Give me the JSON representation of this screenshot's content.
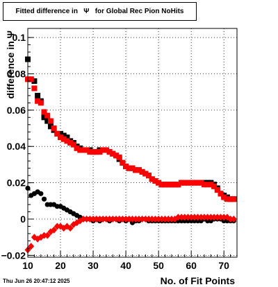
{
  "title": "Fitted difference in   Ψ   for Global Rec Pion NoHits",
  "footer": "Thu Jun 26 20:47:12 2025",
  "chart_data": {
    "type": "scatter",
    "xlabel": "No. of Fit Points",
    "ylabel": "difference in  Ψ",
    "xlim": [
      10,
      74
    ],
    "ylim": [
      -0.021,
      0.105
    ],
    "x_ticks": [
      "10",
      "20",
      "30",
      "40",
      "50",
      "60",
      "70"
    ],
    "y_ticks": [
      "−0.02",
      "0",
      "0.02",
      "0.04",
      "0.06",
      "0.08",
      "0.1"
    ],
    "grid": true,
    "series": [
      {
        "marker": "square",
        "color": "#000000",
        "x": [
          10,
          11,
          12,
          13,
          14,
          15,
          16,
          17,
          18,
          19,
          20,
          21,
          22,
          23,
          24,
          25,
          26,
          27,
          28,
          29,
          30,
          31,
          32,
          33,
          34,
          35,
          36,
          37,
          38,
          39,
          40,
          41,
          42,
          43,
          44,
          45,
          46,
          47,
          48,
          49,
          50,
          51,
          52,
          53,
          54,
          55,
          56,
          57,
          58,
          59,
          60,
          61,
          62,
          63,
          64,
          65,
          66,
          67,
          68,
          69,
          70,
          71,
          72,
          73
        ],
        "values": [
          0.088,
          0.077,
          0.076,
          0.068,
          0.065,
          0.056,
          0.054,
          0.051,
          0.049,
          0.047,
          0.047,
          0.046,
          0.045,
          0.043,
          0.042,
          0.04,
          0.039,
          0.038,
          0.038,
          0.038,
          0.037,
          0.037,
          0.038,
          0.038,
          0.038,
          0.037,
          0.036,
          0.035,
          0.033,
          0.031,
          0.029,
          0.028,
          0.028,
          0.027,
          0.027,
          0.026,
          0.025,
          0.024,
          0.022,
          0.021,
          0.02,
          0.019,
          0.019,
          0.019,
          0.019,
          0.019,
          0.019,
          0.02,
          0.02,
          0.02,
          0.02,
          0.02,
          0.02,
          0.02,
          0.02,
          0.02,
          0.02,
          0.019,
          0.017,
          0.014,
          0.013,
          0.012,
          0.011,
          0.011
        ]
      },
      {
        "marker": "circle",
        "color": "#000000",
        "x": [
          10,
          11,
          12,
          13,
          14,
          15,
          16,
          17,
          18,
          19,
          20,
          21,
          22,
          23,
          24,
          25,
          26,
          27,
          28,
          29,
          30,
          31,
          32,
          33,
          34,
          35,
          36,
          37,
          38,
          39,
          40,
          41,
          42,
          43,
          44,
          45,
          46,
          47,
          48,
          49,
          50,
          51,
          52,
          53,
          54,
          55,
          56,
          57,
          58,
          59,
          60,
          61,
          62,
          63,
          64,
          65,
          66,
          67,
          68,
          69,
          70,
          71,
          72,
          73
        ],
        "values": [
          0.017,
          0.013,
          0.014,
          0.015,
          0.014,
          0.011,
          0.008,
          0.008,
          0.008,
          0.007,
          0.007,
          0.006,
          0.005,
          0.004,
          0.003,
          0.002,
          0.001,
          0.0,
          0.0,
          0.0,
          -0.001,
          0.0,
          -0.001,
          0.0,
          0.0,
          -0.001,
          0.0,
          0.0,
          -0.001,
          0.0,
          -0.001,
          0.0,
          -0.002,
          -0.001,
          -0.001,
          0.0,
          0.0,
          -0.001,
          -0.001,
          -0.001,
          -0.001,
          -0.001,
          -0.001,
          -0.001,
          -0.001,
          -0.001,
          -0.001,
          -0.001,
          -0.001,
          -0.001,
          -0.001,
          -0.001,
          -0.001,
          -0.001,
          0.0,
          -0.001,
          -0.001,
          0.0,
          0.0,
          0.0,
          -0.001,
          -0.001,
          -0.001,
          -0.001
        ]
      },
      {
        "marker": "square",
        "color": "#ff0000",
        "x": [
          10,
          11,
          12,
          13,
          14,
          15,
          16,
          17,
          18,
          19,
          20,
          21,
          22,
          23,
          24,
          25,
          26,
          27,
          28,
          29,
          30,
          31,
          32,
          33,
          34,
          35,
          36,
          37,
          38,
          39,
          40,
          41,
          42,
          43,
          44,
          45,
          46,
          47,
          48,
          49,
          50,
          51,
          52,
          53,
          54,
          55,
          56,
          57,
          58,
          59,
          60,
          61,
          62,
          63,
          64,
          65,
          66,
          67,
          68,
          69,
          70,
          71,
          72,
          73
        ],
        "values": [
          0.077,
          0.077,
          0.072,
          0.065,
          0.064,
          0.059,
          0.057,
          0.054,
          0.05,
          0.047,
          0.045,
          0.044,
          0.043,
          0.042,
          0.041,
          0.039,
          0.038,
          0.038,
          0.038,
          0.037,
          0.037,
          0.037,
          0.037,
          0.038,
          0.038,
          0.037,
          0.036,
          0.035,
          0.034,
          0.031,
          0.029,
          0.028,
          0.028,
          0.027,
          0.027,
          0.026,
          0.025,
          0.024,
          0.022,
          0.021,
          0.02,
          0.019,
          0.019,
          0.019,
          0.019,
          0.019,
          0.019,
          0.02,
          0.02,
          0.02,
          0.02,
          0.02,
          0.02,
          0.02,
          0.019,
          0.019,
          0.019,
          0.018,
          0.016,
          0.014,
          0.012,
          0.011,
          0.011,
          0.011
        ]
      },
      {
        "marker": "diamond",
        "color": "#ff0000",
        "x": [
          10,
          11,
          12,
          13,
          14,
          15,
          16,
          17,
          18,
          19,
          20,
          21,
          22,
          23,
          24,
          25,
          26,
          27,
          28,
          29,
          30,
          31,
          32,
          33,
          34,
          35,
          36,
          37,
          38,
          39,
          40,
          41,
          42,
          43,
          44,
          45,
          46,
          47,
          48,
          49,
          50,
          51,
          52,
          53,
          54,
          55,
          56,
          57,
          58,
          59,
          60,
          61,
          62,
          63,
          64,
          65,
          66,
          67,
          68,
          69,
          70,
          71,
          72,
          73
        ],
        "values": [
          -0.017,
          -0.015,
          -0.01,
          -0.011,
          -0.01,
          -0.009,
          -0.009,
          -0.007,
          -0.006,
          -0.004,
          -0.004,
          -0.005,
          -0.004,
          -0.005,
          -0.003,
          -0.002,
          -0.001,
          0.0,
          0.0,
          0.0,
          0.0,
          0.0,
          0.0,
          0.0,
          0.0,
          0.0,
          0.0,
          0.0,
          0.0,
          0.0,
          0.0,
          0.0,
          0.0,
          0.0,
          0.0,
          0.0,
          0.0,
          0.0,
          0.0,
          0.0,
          0.0,
          0.0,
          0.0,
          0.0,
          0.0,
          0.0,
          0.001,
          0.001,
          0.001,
          0.001,
          0.001,
          0.001,
          0.001,
          0.001,
          0.001,
          0.001,
          0.001,
          0.001,
          0.001,
          0.001,
          0.001,
          0.001,
          0.0,
          0.0
        ]
      }
    ]
  }
}
